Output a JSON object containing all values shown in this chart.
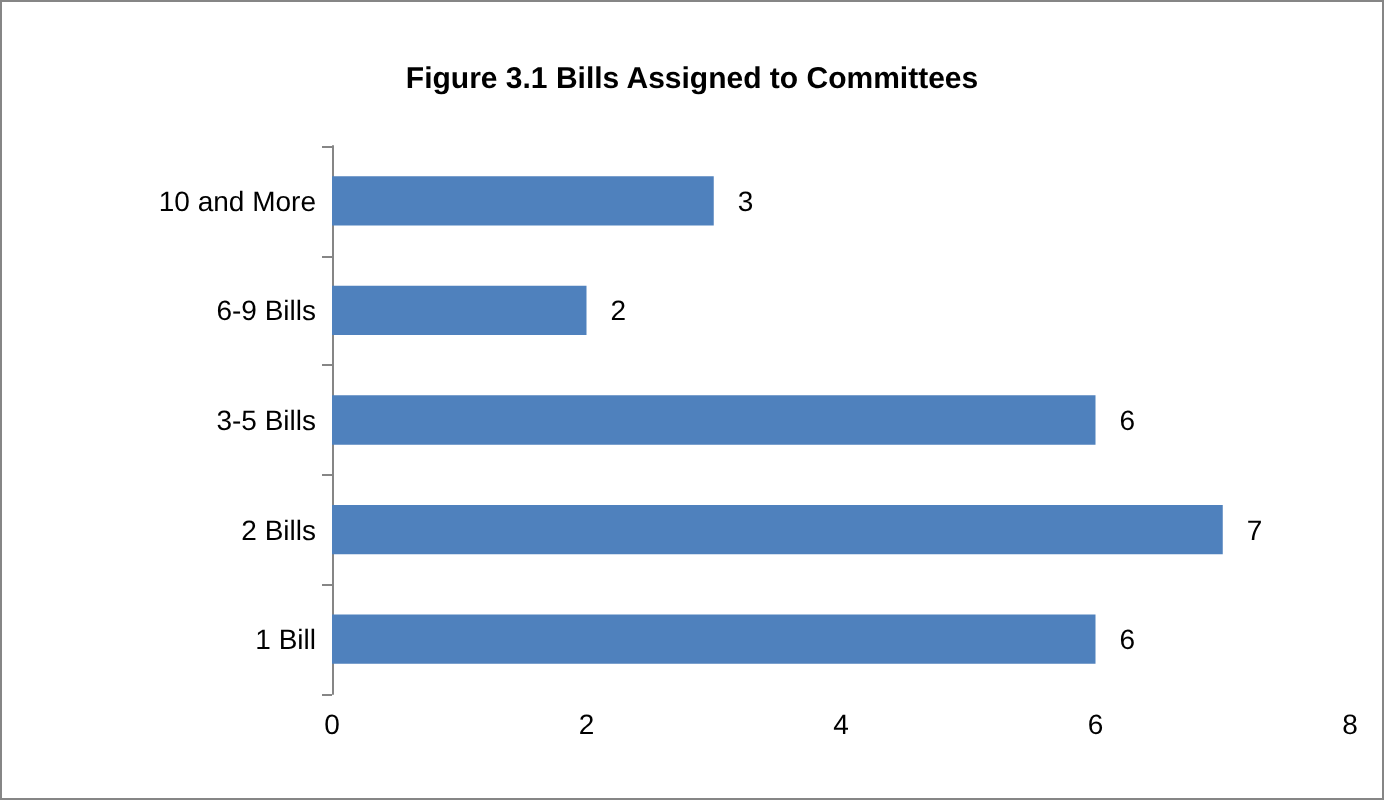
{
  "chart_data": {
    "type": "bar",
    "orientation": "horizontal",
    "title": "Figure 3.1 Bills Assigned to Committees",
    "categories": [
      "10 and More",
      "6-9 Bills",
      "3-5 Bills",
      "2 Bills",
      "1 Bill"
    ],
    "values": [
      3,
      2,
      6,
      7,
      6
    ],
    "color": "#4f81bd",
    "xlim": [
      0,
      8
    ],
    "xticks": [
      0,
      2,
      4,
      6,
      8
    ],
    "grid": false,
    "data_labels": true
  }
}
